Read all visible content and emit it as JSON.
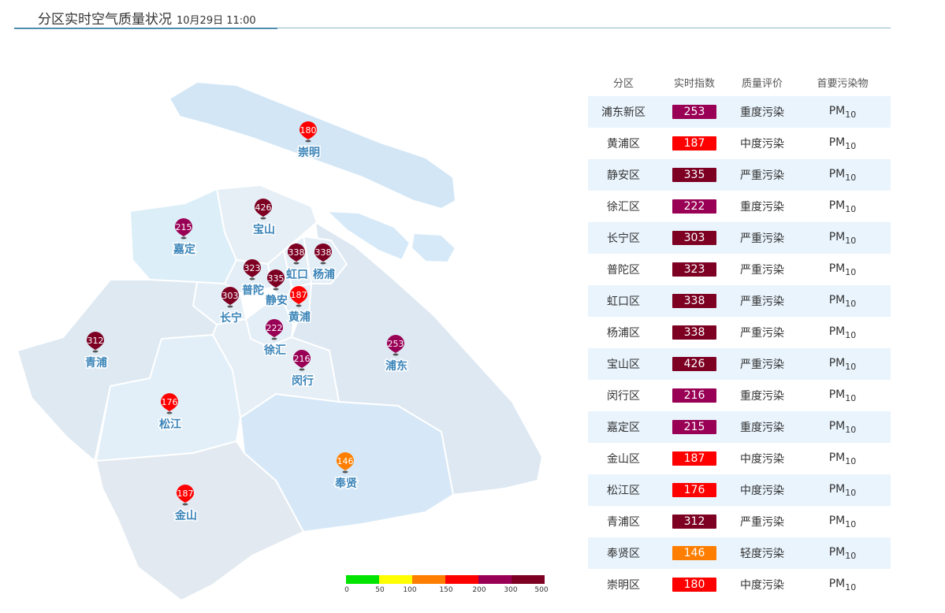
{
  "header": {
    "title": "分区实时空气质量状况",
    "time": "10月29日 11:00"
  },
  "table": {
    "headers": [
      "分区",
      "实时指数",
      "质量评价",
      "首要污染物"
    ],
    "rows": [
      {
        "district": "浦东新区",
        "index": "253",
        "quality": "重度污染",
        "pollutant": "PM",
        "pollutant_sub": "10",
        "color": "#990055"
      },
      {
        "district": "黄浦区",
        "index": "187",
        "quality": "中度污染",
        "pollutant": "PM",
        "pollutant_sub": "10",
        "color": "#ff0000"
      },
      {
        "district": "静安区",
        "index": "335",
        "quality": "严重污染",
        "pollutant": "PM",
        "pollutant_sub": "10",
        "color": "#7d0023"
      },
      {
        "district": "徐汇区",
        "index": "222",
        "quality": "重度污染",
        "pollutant": "PM",
        "pollutant_sub": "10",
        "color": "#990055"
      },
      {
        "district": "长宁区",
        "index": "303",
        "quality": "严重污染",
        "pollutant": "PM",
        "pollutant_sub": "10",
        "color": "#7d0023"
      },
      {
        "district": "普陀区",
        "index": "323",
        "quality": "严重污染",
        "pollutant": "PM",
        "pollutant_sub": "10",
        "color": "#7d0023"
      },
      {
        "district": "虹口区",
        "index": "338",
        "quality": "严重污染",
        "pollutant": "PM",
        "pollutant_sub": "10",
        "color": "#7d0023"
      },
      {
        "district": "杨浦区",
        "index": "338",
        "quality": "严重污染",
        "pollutant": "PM",
        "pollutant_sub": "10",
        "color": "#7d0023"
      },
      {
        "district": "宝山区",
        "index": "426",
        "quality": "严重污染",
        "pollutant": "PM",
        "pollutant_sub": "10",
        "color": "#7d0023"
      },
      {
        "district": "闵行区",
        "index": "216",
        "quality": "重度污染",
        "pollutant": "PM",
        "pollutant_sub": "10",
        "color": "#990055"
      },
      {
        "district": "嘉定区",
        "index": "215",
        "quality": "重度污染",
        "pollutant": "PM",
        "pollutant_sub": "10",
        "color": "#990055"
      },
      {
        "district": "金山区",
        "index": "187",
        "quality": "中度污染",
        "pollutant": "PM",
        "pollutant_sub": "10",
        "color": "#ff0000"
      },
      {
        "district": "松江区",
        "index": "176",
        "quality": "中度污染",
        "pollutant": "PM",
        "pollutant_sub": "10",
        "color": "#ff0000"
      },
      {
        "district": "青浦区",
        "index": "312",
        "quality": "严重污染",
        "pollutant": "PM",
        "pollutant_sub": "10",
        "color": "#7d0023"
      },
      {
        "district": "奉贤区",
        "index": "146",
        "quality": "轻度污染",
        "pollutant": "PM",
        "pollutant_sub": "10",
        "color": "#ff7e00"
      },
      {
        "district": "崇明区",
        "index": "180",
        "quality": "中度污染",
        "pollutant": "PM",
        "pollutant_sub": "10",
        "color": "#ff0000"
      }
    ]
  },
  "map": {
    "markers": [
      {
        "name": "崇明",
        "value": "180",
        "color": "#ff0000"
      },
      {
        "name": "宝山",
        "value": "426",
        "color": "#7d0023"
      },
      {
        "name": "嘉定",
        "value": "215",
        "color": "#990055"
      },
      {
        "name": "虹口",
        "value": "338",
        "color": "#7d0023"
      },
      {
        "name": "杨浦",
        "value": "338",
        "color": "#7d0023"
      },
      {
        "name": "普陀",
        "value": "323",
        "color": "#7d0023"
      },
      {
        "name": "静安",
        "value": "335",
        "color": "#7d0023"
      },
      {
        "name": "黄浦",
        "value": "187",
        "color": "#ff0000"
      },
      {
        "name": "长宁",
        "value": "303",
        "color": "#7d0023"
      },
      {
        "name": "徐汇",
        "value": "222",
        "color": "#990055"
      },
      {
        "name": "闵行",
        "value": "216",
        "color": "#990055"
      },
      {
        "name": "浦东",
        "value": "253",
        "color": "#990055"
      },
      {
        "name": "青浦",
        "value": "312",
        "color": "#7d0023"
      },
      {
        "name": "松江",
        "value": "176",
        "color": "#ff0000"
      },
      {
        "name": "奉贤",
        "value": "146",
        "color": "#ff7e00"
      },
      {
        "name": "金山",
        "value": "187",
        "color": "#ff0000"
      }
    ]
  },
  "legend": {
    "colors": [
      "#00e400",
      "#ffff00",
      "#ff7e00",
      "#ff0000",
      "#990055",
      "#7d0023"
    ],
    "labels": [
      "0",
      "50",
      "100",
      "150",
      "200",
      "300",
      "500"
    ]
  }
}
